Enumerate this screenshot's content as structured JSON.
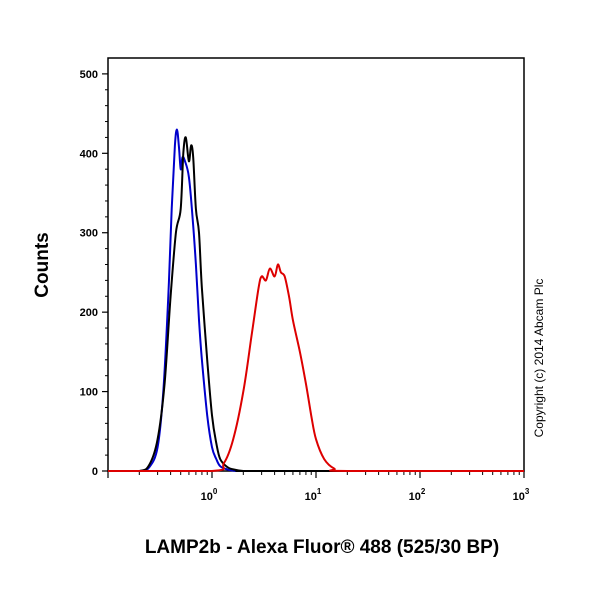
{
  "chart_data": {
    "type": "line",
    "title": "",
    "xlabel": "LAMP2b - Alexa Fluor® 488 (525/30 BP)",
    "ylabel": "Counts",
    "x_scale": "log",
    "xlim": [
      0.1,
      1000
    ],
    "ylim": [
      0,
      520
    ],
    "yticks": [
      "0",
      "100",
      "200",
      "300",
      "400",
      "500"
    ],
    "xticks": [
      {
        "base": "10",
        "exp": "0"
      },
      {
        "base": "10",
        "exp": "1"
      },
      {
        "base": "10",
        "exp": "2"
      },
      {
        "base": "10",
        "exp": "3"
      }
    ],
    "grid": false,
    "legend": "none",
    "copyright": "Copyright (c) 2014 Abcam Plc",
    "series": [
      {
        "color": "#0000cc",
        "x": [
          0.1,
          0.2,
          0.25,
          0.3,
          0.34,
          0.38,
          0.41,
          0.44,
          0.46,
          0.48,
          0.5,
          0.52,
          0.55,
          0.6,
          0.65,
          0.7,
          0.75,
          0.8,
          0.9,
          1.0,
          1.1,
          1.2,
          1.4,
          1.7,
          2.0,
          5,
          1000
        ],
        "y": [
          0,
          0,
          5,
          30,
          100,
          220,
          330,
          410,
          430,
          410,
          380,
          395,
          390,
          370,
          320,
          260,
          190,
          140,
          70,
          30,
          15,
          6,
          2,
          0,
          0,
          0,
          0
        ]
      },
      {
        "color": "#000000",
        "x": [
          0.1,
          0.2,
          0.25,
          0.3,
          0.35,
          0.4,
          0.45,
          0.5,
          0.53,
          0.56,
          0.6,
          0.63,
          0.66,
          0.7,
          0.75,
          0.8,
          0.9,
          1.0,
          1.1,
          1.2,
          1.4,
          1.6,
          2.0,
          3,
          1000
        ],
        "y": [
          0,
          0,
          8,
          40,
          110,
          220,
          300,
          330,
          400,
          420,
          390,
          410,
          395,
          330,
          300,
          230,
          140,
          70,
          35,
          15,
          5,
          2,
          0,
          0,
          0
        ]
      },
      {
        "color": "#dd0000",
        "x": [
          0.1,
          1.0,
          1.3,
          1.6,
          2.0,
          2.4,
          2.8,
          3.0,
          3.3,
          3.6,
          4.0,
          4.3,
          4.6,
          5.0,
          5.5,
          6.0,
          7.0,
          8.0,
          9.0,
          10.0,
          12.0,
          15.0,
          20.0,
          1000
        ],
        "y": [
          0,
          0,
          10,
          40,
          100,
          170,
          230,
          245,
          240,
          255,
          245,
          260,
          250,
          245,
          220,
          190,
          150,
          110,
          70,
          40,
          15,
          3,
          0,
          0
        ]
      }
    ]
  }
}
